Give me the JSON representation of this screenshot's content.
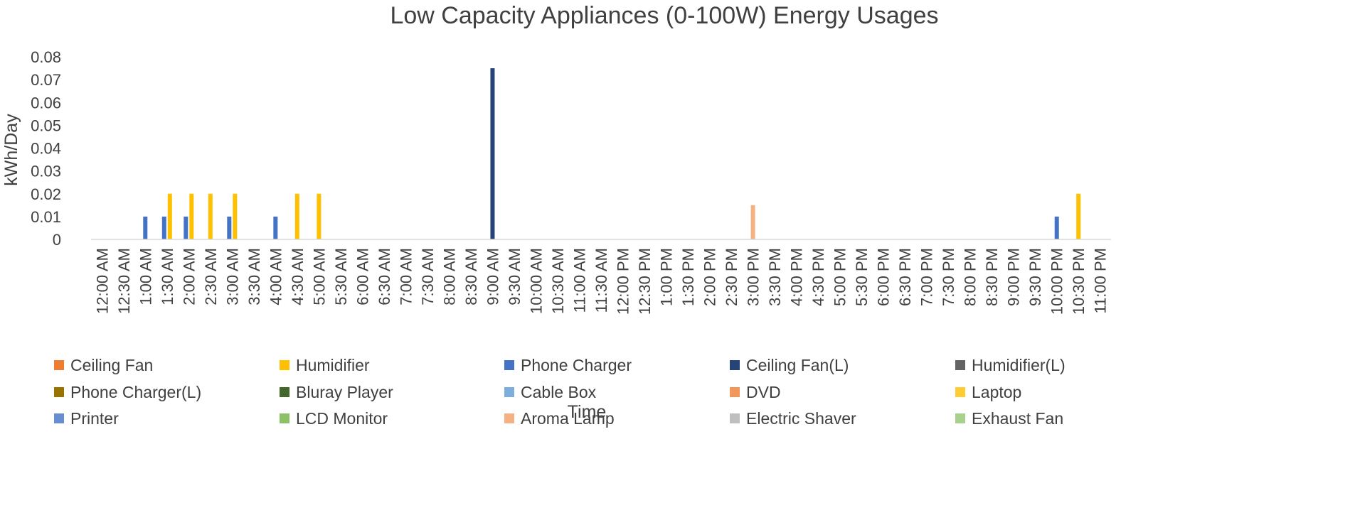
{
  "chart_data": {
    "type": "bar",
    "title": "Low Capacity Appliances  (0-100W) Energy Usages",
    "xlabel": "Time",
    "ylabel": "kWh/Day",
    "ylim": [
      0,
      0.08
    ],
    "y_ticks": [
      "0",
      "0.01",
      "0.02",
      "0.03",
      "0.04",
      "0.05",
      "0.06",
      "0.07",
      "0.08"
    ],
    "grid": false,
    "legend_position": "bottom",
    "categories": [
      "12:00 AM",
      "12:30 AM",
      "1:00 AM",
      "1:30 AM",
      "2:00 AM",
      "2:30 AM",
      "3:00 AM",
      "3:30 AM",
      "4:00 AM",
      "4:30 AM",
      "5:00 AM",
      "5:30 AM",
      "6:00 AM",
      "6:30 AM",
      "7:00 AM",
      "7:30 AM",
      "8:00 AM",
      "8:30 AM",
      "9:00 AM",
      "9:30 AM",
      "10:00 AM",
      "10:30 AM",
      "11:00 AM",
      "11:30 AM",
      "12:00 PM",
      "12:30 PM",
      "1:00 PM",
      "1:30 PM",
      "2:00 PM",
      "2:30 PM",
      "3:00 PM",
      "3:30 PM",
      "4:00 PM",
      "4:30 PM",
      "5:00 PM",
      "5:30 PM",
      "6:00 PM",
      "6:30 PM",
      "7:00 PM",
      "7:30 PM",
      "8:00 PM",
      "8:30 PM",
      "9:00 PM",
      "9:30 PM",
      "10:00 PM",
      "10:30 PM",
      "11:00 PM"
    ],
    "series": [
      {
        "name": "Ceiling Fan",
        "color": "#ED7D31",
        "points": []
      },
      {
        "name": "Humidifier",
        "color": "#FFC000",
        "points": [
          {
            "x": 3,
            "y": 0.02
          },
          {
            "x": 4,
            "y": 0.02
          },
          {
            "x": 5,
            "y": 0.02
          },
          {
            "x": 6,
            "y": 0.02
          },
          {
            "x": 9,
            "y": 0.02
          },
          {
            "x": 10,
            "y": 0.02
          },
          {
            "x": 45,
            "y": 0.02
          }
        ]
      },
      {
        "name": "Phone Charger",
        "color": "#4472C4",
        "points": [
          {
            "x": 2,
            "y": 0.01
          },
          {
            "x": 3,
            "y": 0.01
          },
          {
            "x": 4,
            "y": 0.01
          },
          {
            "x": 6,
            "y": 0.01
          },
          {
            "x": 8,
            "y": 0.01
          },
          {
            "x": 44,
            "y": 0.01
          }
        ]
      },
      {
        "name": "Ceiling Fan(L)",
        "color": "#264478",
        "points": [
          {
            "x": 18,
            "y": 0.075
          }
        ]
      },
      {
        "name": "Humidifier(L)",
        "color": "#636363",
        "points": []
      },
      {
        "name": "Phone Charger(L)",
        "color": "#997300",
        "points": []
      },
      {
        "name": "Bluray Player",
        "color": "#43682B",
        "points": []
      },
      {
        "name": "Cable Box",
        "color": "#7CAFDD",
        "points": []
      },
      {
        "name": "DVD",
        "color": "#F1975A",
        "points": []
      },
      {
        "name": "Laptop",
        "color": "#FFCD33",
        "points": []
      },
      {
        "name": "Printer",
        "color": "#698ED0",
        "points": []
      },
      {
        "name": "LCD Monitor",
        "color": "#8CC168",
        "points": []
      },
      {
        "name": "Aroma Lamp",
        "color": "#F4B183",
        "points": [
          {
            "x": 30,
            "y": 0.015
          }
        ]
      },
      {
        "name": "Electric Shaver",
        "color": "#BFBFBF",
        "points": []
      },
      {
        "name": "Exhaust Fan",
        "color": "#A9D18E",
        "points": []
      }
    ]
  }
}
